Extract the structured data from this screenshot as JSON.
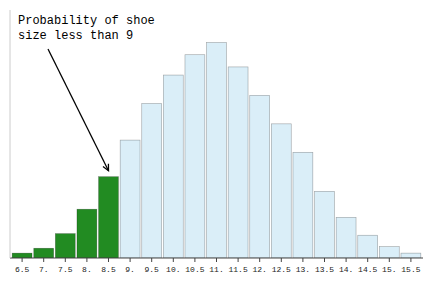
{
  "chart_data": {
    "type": "bar",
    "annotation": "Probability of shoe\nsize less than 9",
    "x": [
      6.5,
      7.0,
      7.5,
      8.0,
      8.5,
      9.0,
      9.5,
      10.0,
      10.5,
      11.0,
      11.5,
      12.0,
      12.5,
      13.0,
      13.5,
      14.0,
      14.5,
      15.0,
      15.5
    ],
    "values": [
      0.006,
      0.012,
      0.03,
      0.06,
      0.1,
      0.145,
      0.19,
      0.225,
      0.25,
      0.265,
      0.235,
      0.2,
      0.165,
      0.13,
      0.082,
      0.05,
      0.028,
      0.014,
      0.006
    ],
    "colors": [
      "#228B22",
      "#228B22",
      "#228B22",
      "#228B22",
      "#228B22",
      "#daeef8",
      "#daeef8",
      "#daeef8",
      "#daeef8",
      "#daeef8",
      "#daeef8",
      "#daeef8",
      "#daeef8",
      "#daeef8",
      "#daeef8",
      "#daeef8",
      "#daeef8",
      "#daeef8",
      "#daeef8"
    ],
    "xlim": [
      6.22,
      15.78
    ],
    "xticks": [
      6.5,
      {
        "value": 7.0,
        "label": "7."
      },
      7.5,
      {
        "value": 8.0,
        "label": "8."
      },
      8.5,
      {
        "value": 9.0,
        "label": "9."
      },
      9.5,
      {
        "value": 10.0,
        "label": "10."
      },
      10.5,
      {
        "value": 11.0,
        "label": "11."
      },
      11.5,
      {
        "value": 12.0,
        "label": "12."
      },
      12.5,
      {
        "value": 13.0,
        "label": "13."
      },
      13.5,
      {
        "value": 14.0,
        "label": "14."
      },
      14.5,
      {
        "value": 15.0,
        "label": "15."
      },
      15.5
    ],
    "ylim": [
      0,
      0.305
    ],
    "tick_labels": "x",
    "grid": false
  }
}
